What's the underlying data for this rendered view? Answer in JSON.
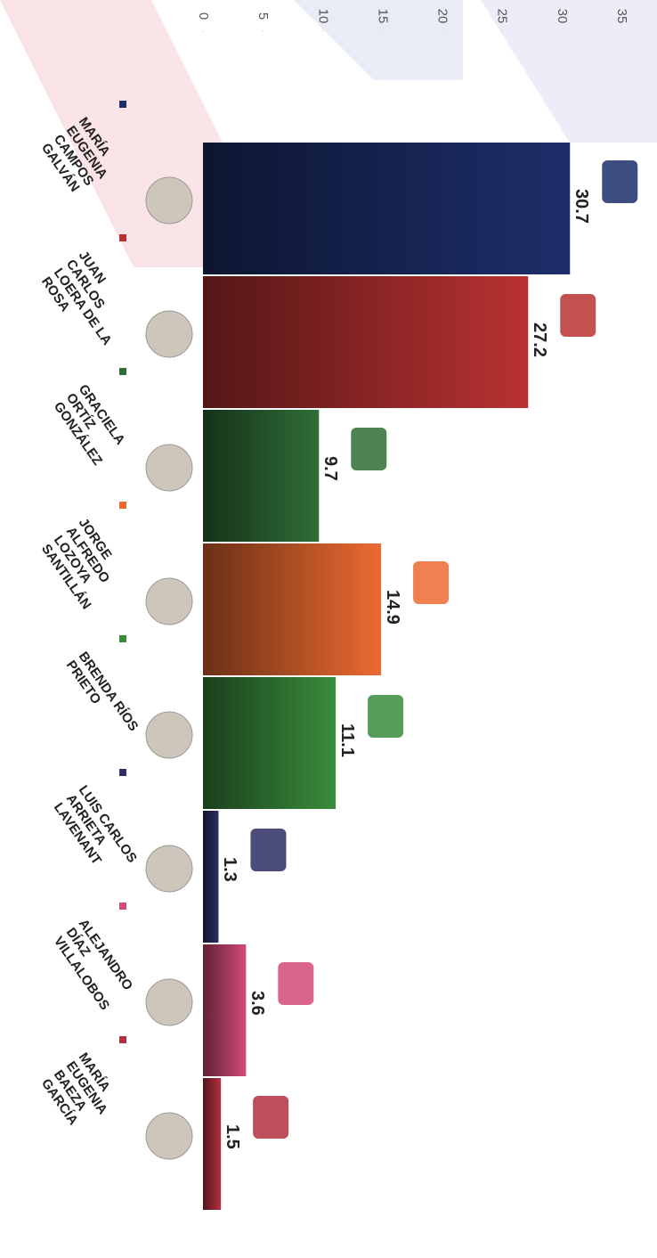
{
  "chart_data": {
    "type": "bar",
    "categories": [
      [
        "MARÍA",
        "EUGENIA",
        "CAMPOS",
        "GALVÁN"
      ],
      [
        "JUAN",
        "CARLOS",
        "LOERA DE LA",
        "ROSA"
      ],
      [
        "GRACIELA",
        "ORTÍZ",
        "GONZÁLEZ"
      ],
      [
        "JORGE",
        "ALFREDO",
        "LOZOYA",
        "SANTILLÁN"
      ],
      [
        "BRENDA RÍOS",
        "PRIETO"
      ],
      [
        "LUIS CARLOS",
        "ARRIETA",
        "LAVENANT"
      ],
      [
        "ALEJANDRO",
        "DÍAZ",
        "VILLALOBOS"
      ],
      [
        "MARÍA",
        "EUGENIA",
        "BAEZA",
        "GARCÍA"
      ]
    ],
    "values": [
      30.7,
      27.2,
      9.7,
      14.9,
      11.1,
      1.3,
      3.6,
      1.5
    ],
    "colors": [
      "#1d2f6b",
      "#b93231",
      "#2f6e37",
      "#ec6a30",
      "#3a8c3c",
      "#2b2d63",
      "#d24a7a",
      "#b2303f"
    ],
    "ylim": [
      0,
      35
    ],
    "yticks": [
      0,
      5,
      10,
      15,
      20,
      25,
      30,
      35
    ]
  }
}
